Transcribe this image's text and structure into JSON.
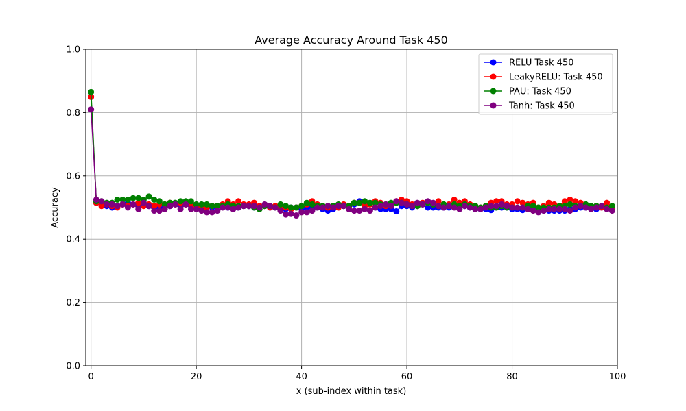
{
  "chart_data": {
    "type": "line",
    "title": "Average Accuracy Around Task 450",
    "xlabel": "x (sub-index within task)",
    "ylabel": "Accuracy",
    "xlim": [
      -1,
      100
    ],
    "ylim": [
      0,
      1.0
    ],
    "xticks": [
      0,
      20,
      40,
      60,
      80,
      100
    ],
    "xtick_labels": [
      "0",
      "20",
      "40",
      "60",
      "80",
      "100"
    ],
    "yticks": [
      0,
      0.2,
      0.4,
      0.6,
      0.8,
      1.0
    ],
    "ytick_labels": [
      "0.0",
      "0.2",
      "0.4",
      "0.6",
      "0.8",
      "1.0"
    ],
    "grid": true,
    "legend_position": "top-right",
    "series": [
      {
        "name": "RELU Task 450",
        "color": "#0000ff",
        "values": [
          0.85,
          0.515,
          0.51,
          0.505,
          0.5,
          0.505,
          0.51,
          0.515,
          0.51,
          0.505,
          0.51,
          0.505,
          0.5,
          0.5,
          0.5,
          0.505,
          0.51,
          0.505,
          0.51,
          0.505,
          0.505,
          0.5,
          0.5,
          0.5,
          0.505,
          0.505,
          0.5,
          0.505,
          0.5,
          0.505,
          0.505,
          0.5,
          0.5,
          0.505,
          0.5,
          0.5,
          0.5,
          0.495,
          0.5,
          0.5,
          0.495,
          0.5,
          0.5,
          0.5,
          0.495,
          0.49,
          0.495,
          0.5,
          0.505,
          0.505,
          0.51,
          0.52,
          0.515,
          0.51,
          0.5,
          0.495,
          0.495,
          0.495,
          0.488,
          0.505,
          0.505,
          0.5,
          0.505,
          0.51,
          0.5,
          0.5,
          0.5,
          0.5,
          0.5,
          0.505,
          0.5,
          0.505,
          0.5,
          0.495,
          0.495,
          0.495,
          0.492,
          0.5,
          0.5,
          0.5,
          0.495,
          0.495,
          0.492,
          0.495,
          0.495,
          0.49,
          0.49,
          0.49,
          0.49,
          0.49,
          0.49,
          0.495,
          0.495,
          0.5,
          0.5,
          0.5,
          0.495,
          0.5,
          0.5,
          0.495
        ]
      },
      {
        "name": "LeakyRELU: Task 450",
        "color": "#ff0000",
        "values": [
          0.85,
          0.515,
          0.505,
          0.51,
          0.505,
          0.5,
          0.51,
          0.505,
          0.51,
          0.515,
          0.505,
          0.51,
          0.505,
          0.51,
          0.51,
          0.515,
          0.51,
          0.515,
          0.51,
          0.51,
          0.505,
          0.505,
          0.5,
          0.505,
          0.505,
          0.51,
          0.52,
          0.51,
          0.52,
          0.51,
          0.51,
          0.515,
          0.505,
          0.505,
          0.5,
          0.505,
          0.5,
          0.5,
          0.495,
          0.5,
          0.505,
          0.51,
          0.52,
          0.51,
          0.505,
          0.5,
          0.505,
          0.5,
          0.51,
          0.505,
          0.515,
          0.515,
          0.505,
          0.51,
          0.52,
          0.515,
          0.505,
          0.51,
          0.52,
          0.525,
          0.52,
          0.51,
          0.505,
          0.515,
          0.515,
          0.51,
          0.52,
          0.51,
          0.51,
          0.525,
          0.515,
          0.52,
          0.51,
          0.505,
          0.5,
          0.505,
          0.515,
          0.52,
          0.52,
          0.51,
          0.51,
          0.52,
          0.515,
          0.51,
          0.515,
          0.5,
          0.505,
          0.515,
          0.51,
          0.505,
          0.52,
          0.525,
          0.52,
          0.515,
          0.505,
          0.5,
          0.505,
          0.5,
          0.515,
          0.5
        ]
      },
      {
        "name": "PAU: Task 450",
        "color": "#008000",
        "values": [
          0.865,
          0.52,
          0.52,
          0.515,
          0.515,
          0.525,
          0.525,
          0.525,
          0.53,
          0.53,
          0.525,
          0.535,
          0.525,
          0.52,
          0.51,
          0.515,
          0.515,
          0.52,
          0.52,
          0.52,
          0.51,
          0.51,
          0.51,
          0.505,
          0.505,
          0.505,
          0.51,
          0.505,
          0.505,
          0.505,
          0.505,
          0.5,
          0.495,
          0.505,
          0.505,
          0.5,
          0.51,
          0.505,
          0.5,
          0.5,
          0.505,
          0.515,
          0.51,
          0.505,
          0.505,
          0.505,
          0.505,
          0.51,
          0.505,
          0.505,
          0.515,
          0.515,
          0.52,
          0.515,
          0.515,
          0.51,
          0.51,
          0.515,
          0.515,
          0.515,
          0.51,
          0.505,
          0.505,
          0.51,
          0.515,
          0.51,
          0.505,
          0.51,
          0.505,
          0.51,
          0.505,
          0.51,
          0.505,
          0.505,
          0.5,
          0.505,
          0.5,
          0.5,
          0.505,
          0.5,
          0.5,
          0.5,
          0.5,
          0.505,
          0.505,
          0.5,
          0.5,
          0.5,
          0.5,
          0.505,
          0.505,
          0.51,
          0.505,
          0.505,
          0.51,
          0.505,
          0.505,
          0.505,
          0.5,
          0.505
        ]
      },
      {
        "name": "Tanh: Task 450",
        "color": "#800080",
        "values": [
          0.81,
          0.525,
          0.52,
          0.51,
          0.51,
          0.505,
          0.51,
          0.5,
          0.51,
          0.495,
          0.515,
          0.505,
          0.49,
          0.49,
          0.495,
          0.505,
          0.51,
          0.495,
          0.51,
          0.495,
          0.495,
          0.49,
          0.485,
          0.485,
          0.49,
          0.5,
          0.5,
          0.495,
          0.5,
          0.505,
          0.505,
          0.505,
          0.5,
          0.51,
          0.505,
          0.5,
          0.49,
          0.478,
          0.48,
          0.475,
          0.485,
          0.485,
          0.49,
          0.5,
          0.5,
          0.505,
          0.5,
          0.505,
          0.505,
          0.495,
          0.49,
          0.49,
          0.495,
          0.49,
          0.5,
          0.505,
          0.51,
          0.505,
          0.52,
          0.515,
          0.51,
          0.505,
          0.515,
          0.51,
          0.52,
          0.515,
          0.505,
          0.5,
          0.505,
          0.5,
          0.495,
          0.505,
          0.5,
          0.495,
          0.495,
          0.5,
          0.505,
          0.505,
          0.51,
          0.505,
          0.5,
          0.5,
          0.5,
          0.495,
          0.49,
          0.485,
          0.49,
          0.495,
          0.495,
          0.495,
          0.495,
          0.49,
          0.5,
          0.505,
          0.5,
          0.495,
          0.5,
          0.505,
          0.495,
          0.49
        ]
      }
    ]
  }
}
